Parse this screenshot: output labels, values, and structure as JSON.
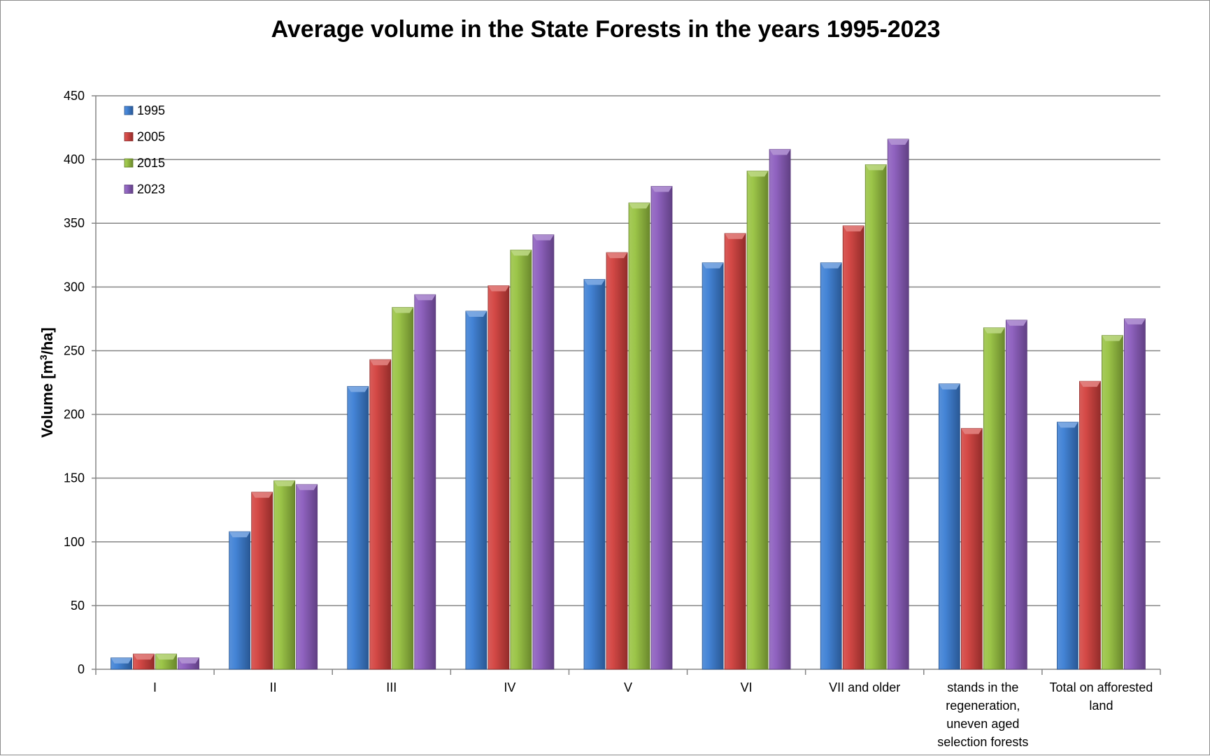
{
  "chart_data": {
    "type": "bar",
    "title": "Average volume in the State Forests in the years 1995-2023",
    "xlabel": "",
    "ylabel_main": "Volume [m",
    "ylabel_sup": "3",
    "ylabel_tail": "/ha]",
    "ylim": [
      0,
      450
    ],
    "yticks": [
      "0",
      "50",
      "100",
      "150",
      "200",
      "250",
      "300",
      "350",
      "400",
      "450"
    ],
    "grid": true,
    "legend_position": "top-left",
    "categories": [
      [
        "I"
      ],
      [
        "II"
      ],
      [
        "III"
      ],
      [
        "IV"
      ],
      [
        "V"
      ],
      [
        "VI"
      ],
      [
        "VII and older"
      ],
      [
        "stands in the",
        "regeneration,",
        "uneven aged",
        "selection forests"
      ],
      [
        "Total on afforested",
        "land"
      ]
    ],
    "series": [
      {
        "name": "1995",
        "color": "#3a7dd4",
        "values": [
          9,
          108,
          222,
          281,
          306,
          319,
          319,
          224,
          194
        ]
      },
      {
        "name": "2005",
        "color": "#d23f3c",
        "values": [
          12,
          139,
          243,
          301,
          327,
          342,
          348,
          189,
          226
        ]
      },
      {
        "name": "2015",
        "color": "#97c23f",
        "values": [
          12,
          148,
          284,
          329,
          366,
          391,
          396,
          268,
          262
        ]
      },
      {
        "name": "2023",
        "color": "#8a5bbd",
        "values": [
          9,
          145,
          294,
          341,
          379,
          408,
          416,
          274,
          275
        ]
      }
    ]
  }
}
